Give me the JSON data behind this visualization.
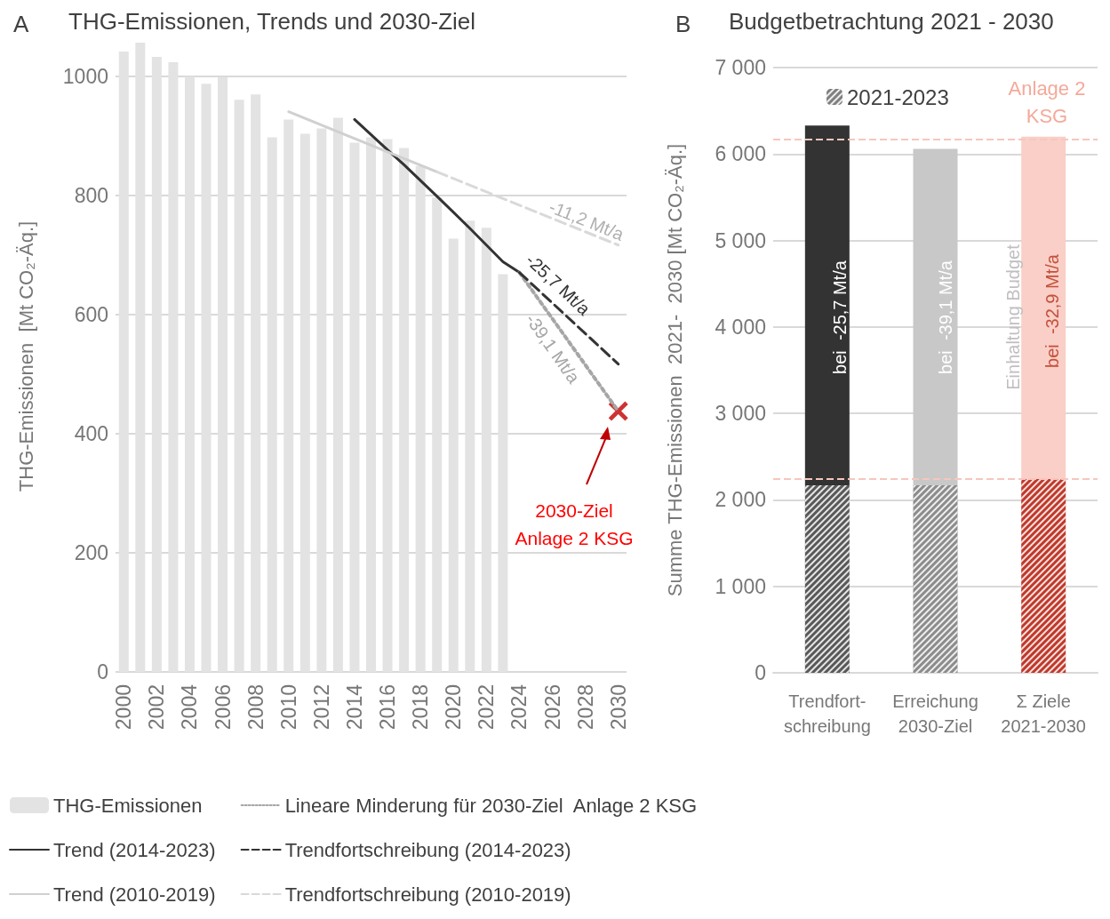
{
  "chart_data": [
    {
      "type": "bar",
      "title": "THG-Emissionen, Trends und 2030-Ziel",
      "ylabel": "THG-Emissionen  [Mt CO₂-Äq.]",
      "series": [
        {
          "name": "THG-Emissionen",
          "type": "bar",
          "color": "#e3e3e3",
          "x": [
            2000,
            2001,
            2002,
            2003,
            2004,
            2005,
            2006,
            2007,
            2008,
            2009,
            2010,
            2011,
            2012,
            2013,
            2014,
            2015,
            2016,
            2017,
            2018,
            2019,
            2020,
            2021,
            2022,
            2023
          ],
          "values": [
            1042,
            1057,
            1033,
            1024,
            1000,
            988,
            999,
            961,
            970,
            898,
            928,
            904,
            913,
            931,
            889,
            898,
            895,
            880,
            850,
            797,
            728,
            758,
            746,
            668
          ]
        },
        {
          "name": "Trend (2014-2023)",
          "type": "line",
          "color": "#333333",
          "line_style": "solid",
          "x": [
            2014,
            2016,
            2017,
            2019,
            2021,
            2023,
            2024
          ],
          "values": [
            928,
            877,
            852,
            799,
            745,
            689,
            671
          ]
        },
        {
          "name": "Trend (2010-2019)",
          "type": "line",
          "color": "#d0d0d0",
          "line_style": "solid",
          "x": [
            2010,
            2014,
            2019
          ],
          "values": [
            941,
            896,
            840
          ]
        },
        {
          "name": "Lineare Minderung für 2030-Ziel  Anlage 2 KSG",
          "type": "line",
          "color": "#a6a6a6",
          "line_style": "dotted",
          "x": [
            2024,
            2030
          ],
          "values": [
            671,
            438
          ]
        },
        {
          "name": "Trendfortschreibung (2014-2023)",
          "type": "line",
          "color": "#333333",
          "line_style": "dashed",
          "x": [
            2024,
            2030
          ],
          "values": [
            671,
            517
          ]
        },
        {
          "name": "Trendfortschreibung (2010-2019)",
          "type": "line",
          "color": "#d9d9d9",
          "line_style": "dashed",
          "x": [
            2019,
            2030
          ],
          "values": [
            840,
            717
          ]
        },
        {
          "type": "scatter",
          "color": "#c00000",
          "marker": "cross",
          "x": [
            2030
          ],
          "values": [
            438
          ]
        }
      ],
      "xlim": [
        1999.5,
        2030.5
      ],
      "xticks": [
        2000,
        2002,
        2004,
        2006,
        2008,
        2010,
        2012,
        2014,
        2016,
        2018,
        2020,
        2022,
        2024,
        2026,
        2028,
        2030
      ],
      "ylim": [
        0,
        1060
      ],
      "yticks": [
        0,
        200,
        400,
        600,
        800,
        1000
      ],
      "grid": "y",
      "legend": "bottom",
      "marker": "none",
      "annotations": [
        "A",
        "-11,2 Mt/a",
        "-25,7 Mt/a",
        "-39,1 Mt/a",
        "2030-Ziel\nAnlage 2 KSG"
      ]
    },
    {
      "type": "bar",
      "stacked": true,
      "title": "Budgetbetrachtung 2021 - 2030",
      "ylabel": "Summe THG-Emissionen  2021-  2030 [Mt CO₂-Äq.]",
      "categories": [
        "Trendfort-\nschreibung",
        "Erreichung\n2030-Ziel",
        "Σ Ziele\n2021-2030"
      ],
      "series": [
        {
          "name": "2021-2023",
          "color": "#7f7f7f",
          "colors": [
            "#595959",
            "#8c8c8c",
            "#c0392b"
          ],
          "values": [
            2170,
            2170,
            2240
          ]
        },
        {
          "colors": [
            "#333333",
            "#c8c8c8",
            "#f9cfc7"
          ],
          "values": [
            4160,
            3890,
            3960
          ]
        }
      ],
      "ylim": [
        0,
        7000
      ],
      "yticks": [
        {
          "value": 0,
          "label": "0"
        },
        {
          "value": 1000,
          "label": "1 000"
        },
        {
          "value": 2000,
          "label": "2 000"
        },
        {
          "value": 3000,
          "label": "3 000"
        },
        {
          "value": 4000,
          "label": "4 000"
        },
        {
          "value": 5000,
          "label": "5 000"
        },
        {
          "value": 6000,
          "label": "6 000"
        },
        {
          "value": 7000,
          "label": "7 000"
        }
      ],
      "grid": "y",
      "legend": "top left",
      "ref_lines": [
        {
          "axis": "y",
          "value": 6170,
          "color": "#f6c6bd",
          "line_style": "dashed"
        },
        {
          "axis": "y",
          "value": 2240,
          "color": "#f6c6bd",
          "line_style": "dashed"
        }
      ],
      "annotations": [
        "B",
        "bei  -25,7 Mt/a",
        "bei  -39,1 Mt/a",
        "bei  -32,9 Mt/a",
        "Einhaltung Budget",
        "Anlage 2\nKSG"
      ]
    }
  ]
}
